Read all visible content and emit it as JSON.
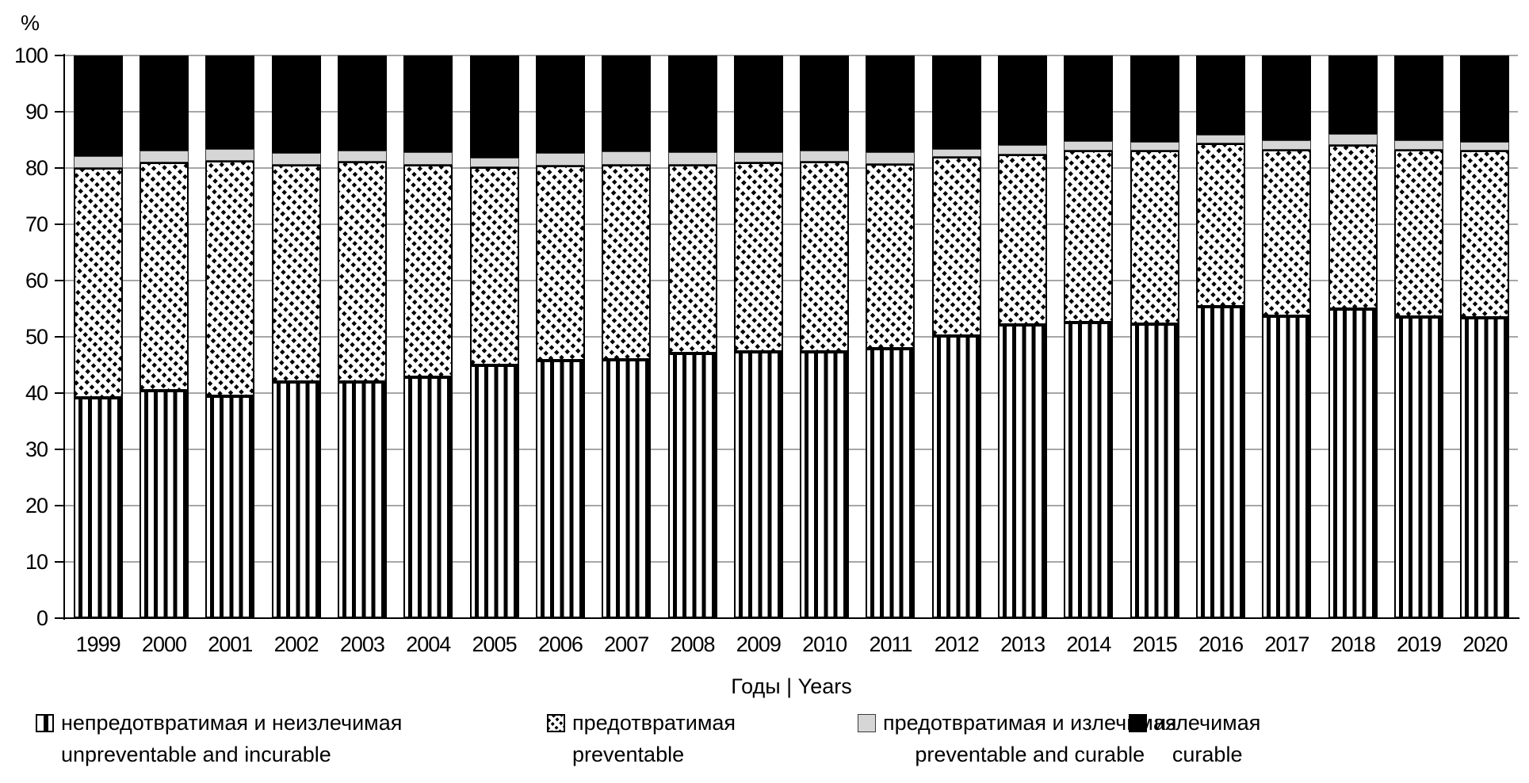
{
  "chart_data": {
    "type": "bar",
    "stacked": true,
    "percent_stacked": true,
    "title": "",
    "ylabel": "%",
    "xlabel": "Годы | Years",
    "ylim": [
      0,
      100
    ],
    "y_ticks": [
      0,
      10,
      20,
      30,
      40,
      50,
      60,
      70,
      80,
      90,
      100
    ],
    "grid": "horizontal-gray",
    "legend_position": "bottom",
    "categories": [
      "1999",
      "2000",
      "2001",
      "2002",
      "2003",
      "2004",
      "2005",
      "2006",
      "2007",
      "2008",
      "2009",
      "2010",
      "2011",
      "2012",
      "2013",
      "2014",
      "2015",
      "2016",
      "2017",
      "2018",
      "2019",
      "2020"
    ],
    "series": [
      {
        "name_ru": "непредотвратимая и неизлечимая",
        "name_en": "unpreventable and incurable",
        "pattern": "vertical-stripes",
        "fill": "#ffffff",
        "values": [
          39.2,
          40.4,
          39.4,
          42.0,
          42.0,
          42.8,
          44.9,
          45.8,
          45.9,
          47.0,
          47.3,
          47.3,
          47.9,
          50.1,
          52.1,
          52.5,
          52.2,
          55.3,
          53.6,
          54.9,
          53.5,
          53.4
        ]
      },
      {
        "name_ru": "предотвратимая",
        "name_en": "preventable",
        "pattern": "diagonal-hatch",
        "fill": "#ffffff",
        "values": [
          40.8,
          40.6,
          41.8,
          38.5,
          39.1,
          37.7,
          35.2,
          34.6,
          34.6,
          33.6,
          33.7,
          33.8,
          32.8,
          31.9,
          30.3,
          30.6,
          30.9,
          29.1,
          29.7,
          29.2,
          29.7,
          29.7
        ]
      },
      {
        "name_ru": "предотвратимая и излечимая",
        "name_en": "preventable and curable",
        "pattern": "solid-gray",
        "fill": "#d6d6d6",
        "values": [
          2.1,
          2.1,
          2.2,
          2.2,
          2.0,
          2.3,
          1.8,
          2.3,
          2.5,
          2.2,
          1.8,
          2.0,
          2.1,
          1.4,
          1.7,
          1.7,
          1.6,
          1.5,
          1.7,
          1.9,
          1.7,
          1.5
        ]
      },
      {
        "name_ru": "излечимая",
        "name_en": "curable",
        "pattern": "solid-black",
        "fill": "#000000",
        "values": [
          17.9,
          16.9,
          16.6,
          17.3,
          16.9,
          17.2,
          18.1,
          17.3,
          17.0,
          17.2,
          17.2,
          16.9,
          17.2,
          16.6,
          15.9,
          15.2,
          15.3,
          14.1,
          15.0,
          14.0,
          15.1,
          15.4
        ]
      }
    ]
  },
  "colors": {
    "background": "#ffffff",
    "gridline": "#a6a6a6",
    "axis": "#000000",
    "bar_outline": "#000000"
  }
}
